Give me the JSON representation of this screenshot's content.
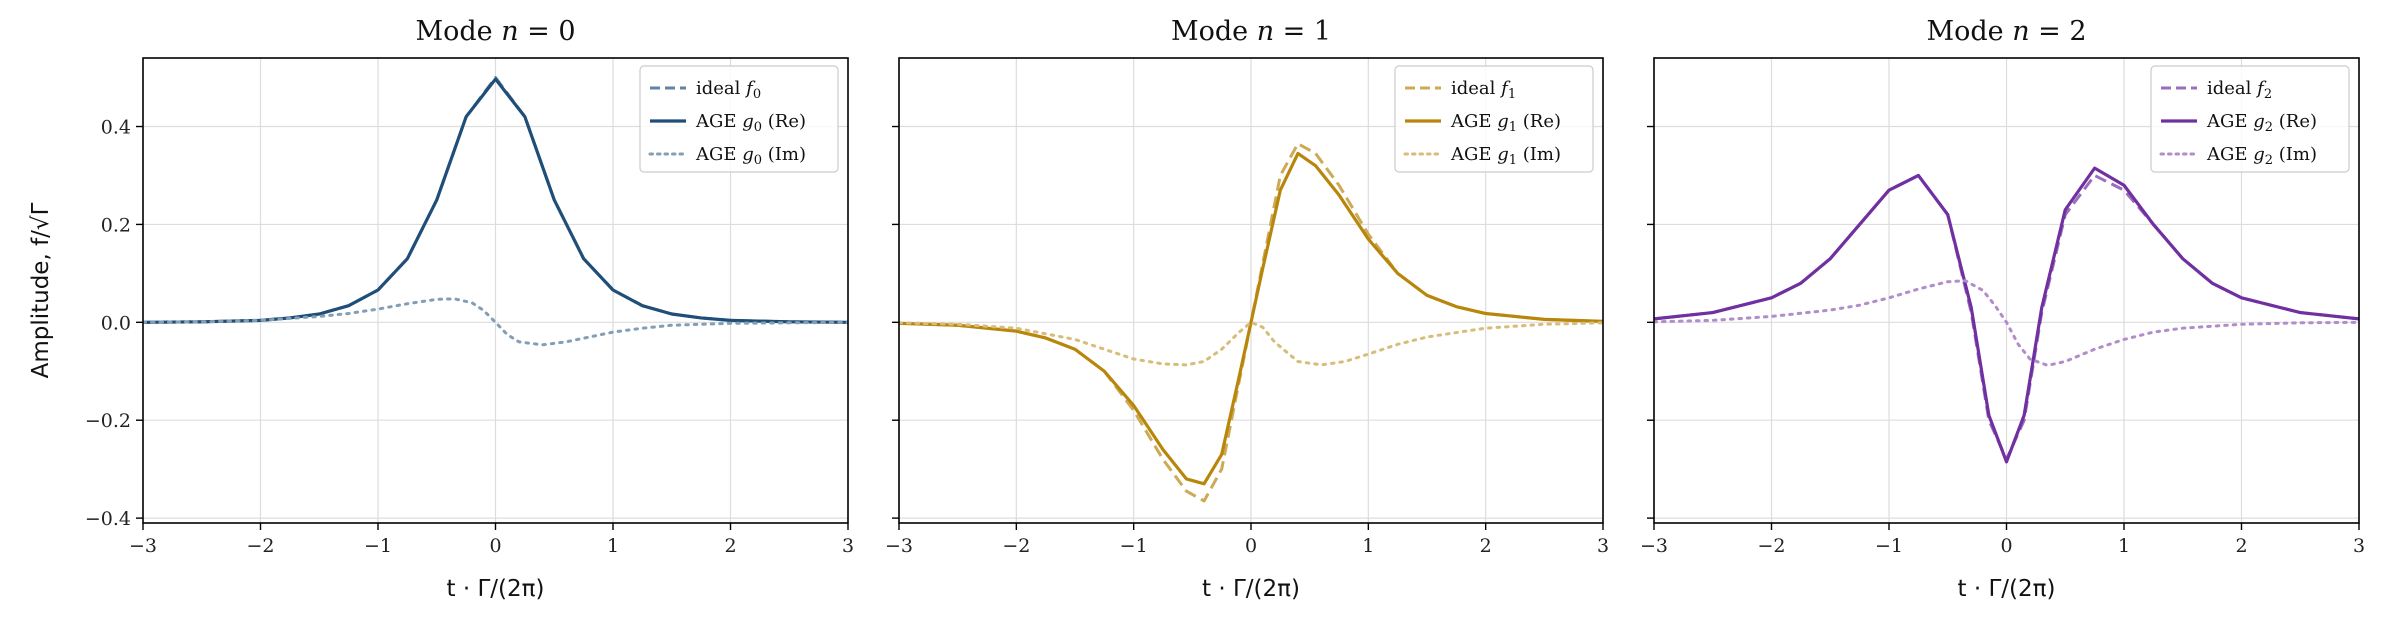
{
  "chart_data": {
    "type": "line",
    "xlabel": "t · Γ/(2π)",
    "ylabel": "Amplitude, f/√Γ",
    "xlim": [
      -3,
      3
    ],
    "ylim": [
      -0.41,
      0.54
    ],
    "xticks": [
      -3,
      -2,
      -1,
      0,
      1,
      2,
      3
    ],
    "xtick_labels": [
      "−3",
      "−2",
      "−1",
      "0",
      "1",
      "2",
      "3"
    ],
    "yticks": [
      -0.4,
      -0.2,
      0.0,
      0.2,
      0.4
    ],
    "ytick_labels": [
      "−0.4",
      "−0.2",
      "0.0",
      "0.2",
      "0.4"
    ],
    "grid": true,
    "legend_placement": "top-right",
    "shared_y": true,
    "panels": [
      {
        "title": "Mode n = 0",
        "title_parts": [
          "Mode ",
          "n",
          " = 0"
        ],
        "color": "#1f4e79",
        "series": [
          {
            "name": "ideal f₀",
            "legend": [
              "ideal ",
              "f",
              "0",
              ""
            ],
            "style": "dashed",
            "x": [
              -3,
              -2.5,
              -2,
              -1.75,
              -1.5,
              -1.25,
              -1,
              -0.75,
              -0.5,
              -0.25,
              0,
              0.25,
              0.5,
              0.75,
              1,
              1.25,
              1.5,
              1.75,
              2,
              2.5,
              3
            ],
            "y": [
              0,
              0.001,
              0.004,
              0.009,
              0.017,
              0.034,
              0.066,
              0.13,
              0.25,
              0.42,
              0.5,
              0.42,
              0.25,
              0.13,
              0.066,
              0.034,
              0.017,
              0.009,
              0.004,
              0.001,
              0
            ]
          },
          {
            "name": "AGE g₀ (Re)",
            "legend": [
              "AGE ",
              "g",
              "0",
              " (Re)"
            ],
            "style": "solid",
            "x": [
              -3,
              -2.5,
              -2,
              -1.75,
              -1.5,
              -1.25,
              -1,
              -0.75,
              -0.5,
              -0.25,
              0,
              0.25,
              0.5,
              0.75,
              1,
              1.25,
              1.5,
              1.75,
              2,
              2.5,
              3
            ],
            "y": [
              0,
              0.001,
              0.004,
              0.009,
              0.017,
              0.034,
              0.066,
              0.13,
              0.25,
              0.42,
              0.497,
              0.42,
              0.25,
              0.13,
              0.066,
              0.034,
              0.017,
              0.009,
              0.004,
              0.001,
              0
            ]
          },
          {
            "name": "AGE g₀ (Im)",
            "legend": [
              "AGE ",
              "g",
              "0",
              " (Im)"
            ],
            "style": "dotted",
            "x": [
              -3,
              -2.5,
              -2,
              -1.5,
              -1.25,
              -1,
              -0.75,
              -0.5,
              -0.35,
              -0.2,
              -0.1,
              0,
              0.1,
              0.2,
              0.4,
              0.6,
              0.8,
              1,
              1.25,
              1.5,
              2,
              2.5,
              3
            ],
            "y": [
              0,
              0.001,
              0.004,
              0.012,
              0.018,
              0.027,
              0.038,
              0.047,
              0.048,
              0.04,
              0.024,
              0,
              -0.025,
              -0.04,
              -0.046,
              -0.04,
              -0.03,
              -0.02,
              -0.012,
              -0.006,
              -0.002,
              -0.001,
              0
            ]
          }
        ]
      },
      {
        "title": "Mode n = 1",
        "title_parts": [
          "Mode ",
          "n",
          " = 1"
        ],
        "color": "#b8860b",
        "series": [
          {
            "name": "ideal f₁",
            "legend": [
              "ideal ",
              "f",
              "1",
              ""
            ],
            "style": "dashed",
            "x": [
              -3,
              -2.5,
              -2,
              -1.75,
              -1.5,
              -1.25,
              -1,
              -0.75,
              -0.55,
              -0.4,
              -0.25,
              -0.1,
              0,
              0.1,
              0.25,
              0.4,
              0.55,
              0.75,
              1,
              1.25,
              1.5,
              1.75,
              2,
              2.5,
              3
            ],
            "y": [
              -0.002,
              -0.006,
              -0.018,
              -0.032,
              -0.055,
              -0.1,
              -0.18,
              -0.28,
              -0.345,
              -0.365,
              -0.3,
              -0.12,
              0,
              0.12,
              0.3,
              0.365,
              0.345,
              0.28,
              0.18,
              0.1,
              0.055,
              0.032,
              0.018,
              0.006,
              0.002
            ]
          },
          {
            "name": "AGE g₁ (Re)",
            "legend": [
              "AGE ",
              "g",
              "1",
              " (Re)"
            ],
            "style": "solid",
            "x": [
              -3,
              -2.5,
              -2,
              -1.75,
              -1.5,
              -1.25,
              -1,
              -0.75,
              -0.55,
              -0.4,
              -0.25,
              -0.1,
              0,
              0.1,
              0.25,
              0.4,
              0.55,
              0.75,
              1,
              1.25,
              1.5,
              1.75,
              2,
              2.5,
              3
            ],
            "y": [
              -0.002,
              -0.006,
              -0.018,
              -0.032,
              -0.055,
              -0.1,
              -0.17,
              -0.26,
              -0.32,
              -0.33,
              -0.27,
              -0.11,
              0,
              0.11,
              0.27,
              0.345,
              0.32,
              0.26,
              0.17,
              0.1,
              0.055,
              0.032,
              0.018,
              0.006,
              0.002
            ]
          },
          {
            "name": "AGE g₁ (Im)",
            "legend": [
              "AGE ",
              "g",
              "1",
              " (Im)"
            ],
            "style": "dotted",
            "x": [
              -3,
              -2.5,
              -2,
              -1.5,
              -1.25,
              -1,
              -0.75,
              -0.55,
              -0.4,
              -0.25,
              -0.1,
              0,
              0.1,
              0.2,
              0.4,
              0.6,
              0.8,
              1,
              1.25,
              1.5,
              2,
              2.5,
              3
            ],
            "y": [
              -0.001,
              -0.004,
              -0.012,
              -0.035,
              -0.055,
              -0.075,
              -0.085,
              -0.087,
              -0.08,
              -0.055,
              -0.02,
              0,
              -0.01,
              -0.04,
              -0.08,
              -0.087,
              -0.08,
              -0.065,
              -0.045,
              -0.03,
              -0.012,
              -0.004,
              -0.001
            ]
          }
        ]
      },
      {
        "title": "Mode n = 2",
        "title_parts": [
          "Mode ",
          "n",
          " = 2"
        ],
        "color": "#7030a0",
        "series": [
          {
            "name": "ideal f₂",
            "legend": [
              "ideal ",
              "f",
              "2",
              ""
            ],
            "style": "dashed",
            "x": [
              -3,
              -2.5,
              -2,
              -1.75,
              -1.5,
              -1.25,
              -1,
              -0.75,
              -0.5,
              -0.3,
              -0.15,
              0,
              0.15,
              0.3,
              0.5,
              0.75,
              1,
              1.25,
              1.5,
              1.75,
              2,
              2.5,
              3
            ],
            "y": [
              0.007,
              0.02,
              0.05,
              0.08,
              0.13,
              0.2,
              0.27,
              0.3,
              0.22,
              0.02,
              -0.2,
              -0.28,
              -0.2,
              0.02,
              0.22,
              0.3,
              0.27,
              0.2,
              0.13,
              0.08,
              0.05,
              0.02,
              0.007
            ]
          },
          {
            "name": "AGE g₂ (Re)",
            "legend": [
              "AGE ",
              "g",
              "2",
              " (Re)"
            ],
            "style": "solid",
            "x": [
              -3,
              -2.5,
              -2,
              -1.75,
              -1.5,
              -1.25,
              -1,
              -0.75,
              -0.5,
              -0.3,
              -0.15,
              0,
              0.15,
              0.3,
              0.5,
              0.75,
              1,
              1.25,
              1.5,
              1.75,
              2,
              2.5,
              3
            ],
            "y": [
              0.007,
              0.02,
              0.05,
              0.08,
              0.13,
              0.2,
              0.27,
              0.3,
              0.22,
              0.03,
              -0.19,
              -0.285,
              -0.19,
              0.03,
              0.23,
              0.315,
              0.28,
              0.2,
              0.13,
              0.08,
              0.05,
              0.02,
              0.007
            ]
          },
          {
            "name": "AGE g₂ (Im)",
            "legend": [
              "AGE ",
              "g",
              "2",
              " (Im)"
            ],
            "style": "dotted",
            "x": [
              -3,
              -2.5,
              -2,
              -1.5,
              -1.25,
              -1,
              -0.75,
              -0.5,
              -0.35,
              -0.2,
              -0.1,
              0,
              0.1,
              0.2,
              0.35,
              0.5,
              0.75,
              1,
              1.25,
              1.5,
              2,
              2.5,
              3
            ],
            "y": [
              0.001,
              0.004,
              0.012,
              0.025,
              0.035,
              0.05,
              0.068,
              0.083,
              0.085,
              0.065,
              0.035,
              0,
              -0.045,
              -0.075,
              -0.088,
              -0.08,
              -0.055,
              -0.035,
              -0.02,
              -0.012,
              -0.004,
              -0.001,
              0
            ]
          }
        ]
      }
    ]
  }
}
